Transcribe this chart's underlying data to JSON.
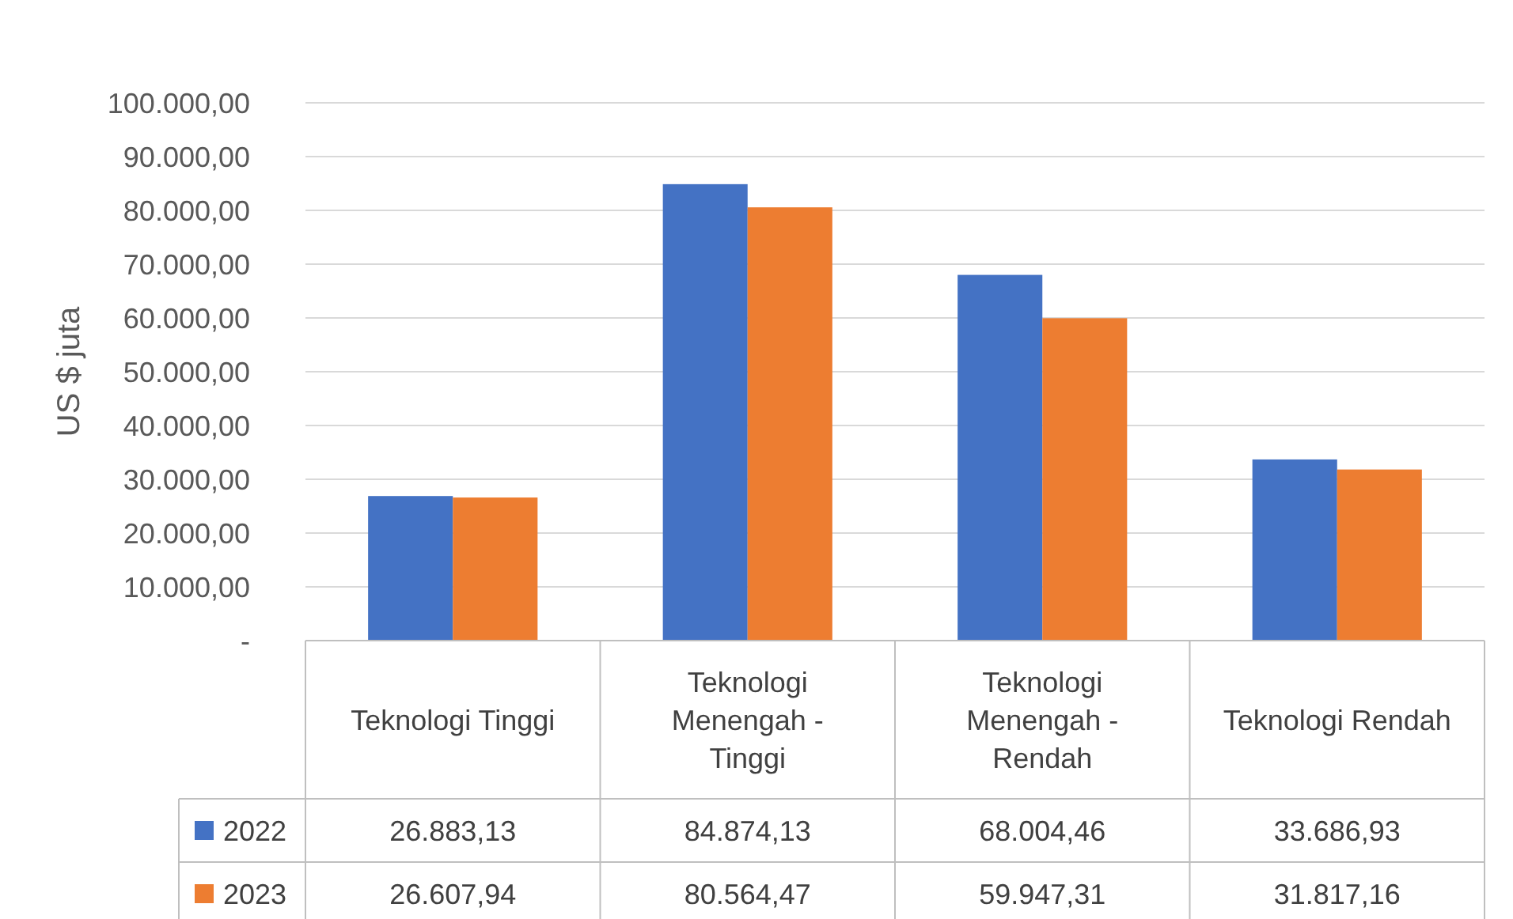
{
  "chart_data": {
    "type": "bar",
    "ylabel": "US $ juta",
    "categories": [
      "Teknologi Tinggi",
      "Teknologi Menengah - Tinggi",
      "Teknologi Menengah - Rendah",
      "Teknologi Rendah"
    ],
    "series": [
      {
        "name": "2022",
        "color": "#4472c4",
        "values": [
          26883.13,
          84874.13,
          68004.46,
          33686.93
        ],
        "value_labels": [
          "26.883,13",
          "84.874,13",
          "68.004,46",
          "33.686,93"
        ]
      },
      {
        "name": "2023",
        "color": "#ed7d31",
        "values": [
          26607.94,
          80564.47,
          59947.31,
          31817.16
        ],
        "value_labels": [
          "26.607,94",
          "80.564,47",
          "59.947,31",
          "31.817,16"
        ]
      }
    ],
    "ylim": [
      0,
      100000
    ],
    "yticks": [
      {
        "value": 0,
        "label": "-"
      },
      {
        "value": 10000,
        "label": "10.000,00"
      },
      {
        "value": 20000,
        "label": "20.000,00"
      },
      {
        "value": 30000,
        "label": "30.000,00"
      },
      {
        "value": 40000,
        "label": "40.000,00"
      },
      {
        "value": 50000,
        "label": "50.000,00"
      },
      {
        "value": 60000,
        "label": "60.000,00"
      },
      {
        "value": 70000,
        "label": "70.000,00"
      },
      {
        "value": 80000,
        "label": "80.000,00"
      },
      {
        "value": 90000,
        "label": "90.000,00"
      },
      {
        "value": 100000,
        "label": "100.000,00"
      }
    ],
    "grid": "y",
    "legend": "bottom left"
  }
}
